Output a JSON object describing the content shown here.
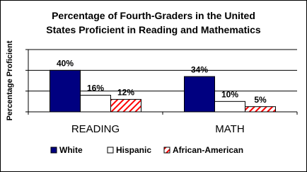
{
  "chart_data": {
    "type": "bar",
    "title": "Percentage of Fourth-Graders in the United States Proficient in Reading and Mathematics",
    "y_label": "Percentage Proficient",
    "categories": [
      "READING",
      "MATH"
    ],
    "series": [
      {
        "name": "White",
        "color": "#000080",
        "values": [
          40,
          34
        ],
        "value_labels": [
          "40%",
          "34%"
        ]
      },
      {
        "name": "Hispanic",
        "color": "#ffffff",
        "values": [
          16,
          10
        ],
        "value_labels": [
          "16%",
          "10%"
        ]
      },
      {
        "name": "African-American",
        "color": "#ff0000",
        "hatch": true,
        "values": [
          12,
          5
        ],
        "value_labels": [
          "12%",
          "5%"
        ]
      }
    ],
    "ylim": [
      0,
      60
    ],
    "yticks": [
      0,
      20,
      40,
      60
    ],
    "grid": true,
    "legend": "bottom"
  }
}
